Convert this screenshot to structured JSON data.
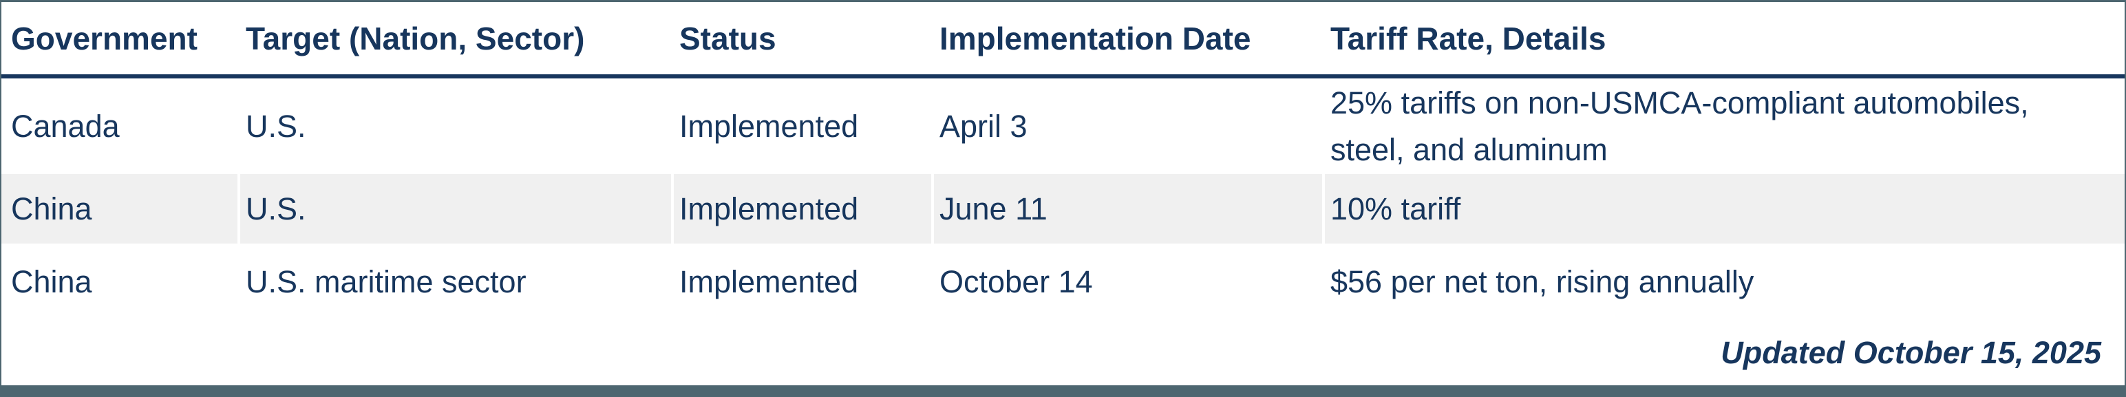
{
  "chart_data": {
    "type": "table",
    "columns": [
      "Government",
      "Target (Nation, Sector)",
      "Status",
      "Implementation Date",
      "Tariff Rate, Details"
    ],
    "rows": [
      [
        "Canada",
        "U.S.",
        "Implemented",
        "April 3",
        "25% tariffs on non-USMCA-compliant automobiles, steel, and aluminum"
      ],
      [
        "China",
        "U.S.",
        "Implemented",
        "June 11",
        "10% tariff"
      ],
      [
        "China",
        "U.S. maritime sector",
        "Implemented",
        "October 14",
        "$56 per net ton, rising annually"
      ]
    ],
    "footer_note": "Updated October 15, 2025",
    "layout_hints": {
      "striped_row_index": 1,
      "header_rule": "thick navy line under header",
      "frame": "thin slate top/side borders, thick slate bottom bar"
    }
  },
  "colors": {
    "text_navy": "#17365d",
    "header_rule_navy": "#17365d",
    "row_alt_gray": "#f0f0f0",
    "frame_slate": "#4d6670"
  }
}
